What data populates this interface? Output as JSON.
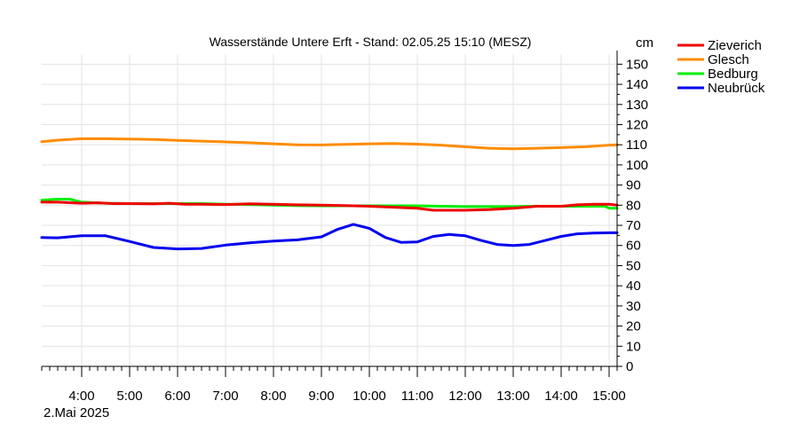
{
  "chart_data": {
    "type": "line",
    "title": "Wasserstände Untere Erft - Stand: 02.05.25 15:10 (MESZ)",
    "ylabel": "cm",
    "date_label": "2.Mai 2025",
    "ylim": [
      0,
      155
    ],
    "xlim": [
      "03:10",
      "15:10"
    ],
    "y_ticks": [
      0,
      10,
      20,
      30,
      40,
      50,
      60,
      70,
      80,
      90,
      100,
      110,
      120,
      130,
      140,
      150
    ],
    "x_ticks": [
      "4:00",
      "5:00",
      "6:00",
      "7:00",
      "8:00",
      "9:00",
      "10:00",
      "11:00",
      "12:00",
      "13:00",
      "14:00",
      "15:00"
    ],
    "grid": true,
    "legend_position": "top-right",
    "series": [
      {
        "name": "Zieverich",
        "color": "#ee0000",
        "x": [
          "03:10",
          "03:30",
          "04:00",
          "04:20",
          "04:40",
          "05:00",
          "05:30",
          "05:50",
          "06:10",
          "06:30",
          "07:00",
          "07:30",
          "08:00",
          "08:30",
          "09:00",
          "09:30",
          "10:00",
          "10:30",
          "11:00",
          "11:20",
          "11:40",
          "12:00",
          "12:30",
          "13:00",
          "13:30",
          "14:00",
          "14:20",
          "14:40",
          "15:00",
          "15:10"
        ],
        "values": [
          81.5,
          81.5,
          81,
          81.2,
          80.8,
          80.8,
          80.7,
          81,
          80.5,
          80.5,
          80.3,
          80.7,
          80.5,
          80.2,
          80,
          79.8,
          79.5,
          79,
          78.5,
          77.5,
          77.5,
          77.5,
          77.8,
          78.5,
          79.5,
          79.5,
          80.2,
          80.5,
          80.5,
          80
        ]
      },
      {
        "name": "Glesch",
        "color": "#ff8c00",
        "x": [
          "03:10",
          "03:30",
          "04:00",
          "04:30",
          "05:00",
          "05:30",
          "06:00",
          "06:30",
          "07:00",
          "07:30",
          "08:00",
          "08:30",
          "09:00",
          "09:30",
          "10:00",
          "10:30",
          "11:00",
          "11:30",
          "12:00",
          "12:30",
          "13:00",
          "13:30",
          "14:00",
          "14:30",
          "15:00",
          "15:10"
        ],
        "values": [
          111.5,
          112.3,
          113,
          113,
          112.8,
          112.6,
          112.2,
          111.8,
          111.4,
          111,
          110.5,
          110,
          109.9,
          110.2,
          110.5,
          110.6,
          110.3,
          109.8,
          109,
          108.3,
          108,
          108.3,
          108.6,
          109,
          109.8,
          110
        ]
      },
      {
        "name": "Bedburg",
        "color": "#00ee00",
        "x": [
          "03:10",
          "03:30",
          "03:45",
          "04:00",
          "04:30",
          "05:00",
          "05:30",
          "06:00",
          "06:30",
          "07:00",
          "07:30",
          "08:00",
          "08:30",
          "09:00",
          "09:30",
          "10:00",
          "10:30",
          "11:00",
          "11:30",
          "12:00",
          "12:30",
          "13:00",
          "13:30",
          "14:00",
          "14:30",
          "14:55",
          "15:00",
          "15:10"
        ],
        "values": [
          82.5,
          83,
          83,
          81.5,
          81,
          80.8,
          80.8,
          80.8,
          80.8,
          80.5,
          80.3,
          80,
          79.8,
          79.7,
          79.7,
          79.7,
          79.7,
          79.7,
          79.5,
          79.3,
          79.3,
          79.3,
          79.5,
          79.5,
          79.5,
          79.5,
          78.5,
          78.5
        ]
      },
      {
        "name": "Neubrück",
        "color": "#0000ee",
        "x": [
          "03:10",
          "03:30",
          "04:00",
          "04:30",
          "05:00",
          "05:30",
          "06:00",
          "06:30",
          "07:00",
          "07:30",
          "08:00",
          "08:30",
          "09:00",
          "09:20",
          "09:40",
          "10:00",
          "10:20",
          "10:40",
          "11:00",
          "11:20",
          "11:40",
          "12:00",
          "12:20",
          "12:40",
          "13:00",
          "13:20",
          "13:40",
          "14:00",
          "14:20",
          "14:40",
          "15:00",
          "15:10"
        ],
        "values": [
          64,
          63.8,
          64.8,
          64.8,
          62,
          59,
          58.3,
          58.5,
          60.2,
          61.3,
          62.2,
          62.8,
          64.3,
          68,
          70.5,
          68.5,
          64,
          61.5,
          61.8,
          64.5,
          65.5,
          64.8,
          62.5,
          60.5,
          60,
          60.5,
          62.5,
          64.5,
          65.8,
          66.2,
          66.3,
          66.3
        ]
      }
    ]
  }
}
